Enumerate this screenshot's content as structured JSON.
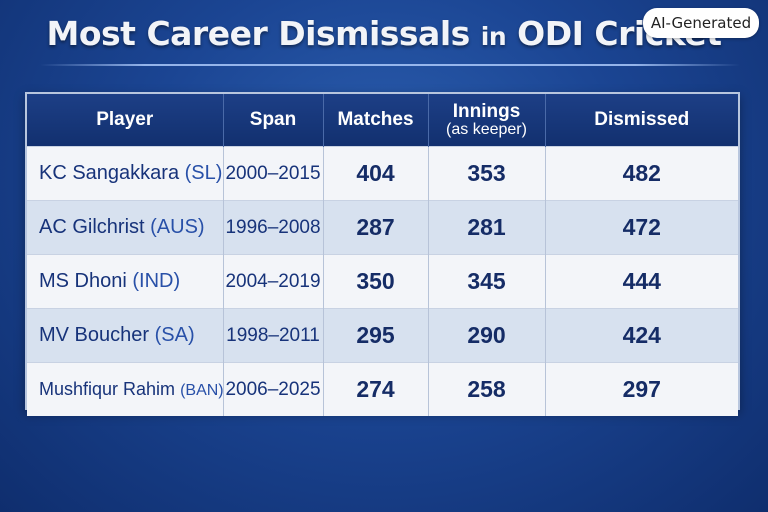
{
  "title_main": "Most Career Dismissals",
  "title_in": "in",
  "title_end": "ODI Cricket",
  "badge": "AI-Generated",
  "chart_data": {
    "type": "table",
    "columns": [
      "Player",
      "Span",
      "Matches",
      "Innings",
      "(as keeper)",
      "Dismissed"
    ],
    "rows": [
      {
        "player": "KC Sangakkara",
        "country": "(SL)",
        "span": "2000–2015",
        "matches": 404,
        "innings": 353,
        "dismissed": 482
      },
      {
        "player": "AC Gilchrist",
        "country": "(AUS)",
        "span": "1996–2008",
        "matches": 287,
        "innings": 281,
        "dismissed": 472
      },
      {
        "player": "MS Dhoni",
        "country": "(IND)",
        "span": "2004–2019",
        "matches": 350,
        "innings": 345,
        "dismissed": 444
      },
      {
        "player": "MV Boucher",
        "country": "(SA)",
        "span": "1998–2011",
        "matches": 295,
        "innings": 290,
        "dismissed": 424
      },
      {
        "player": "Mushfiqur Rahim",
        "country": "(BAN)",
        "span": "2006–2025",
        "matches": 274,
        "innings": 258,
        "dismissed": 297
      }
    ]
  }
}
